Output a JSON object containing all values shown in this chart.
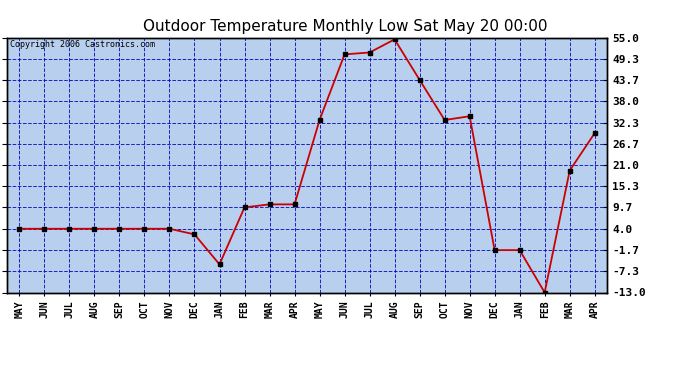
{
  "title": "Outdoor Temperature Monthly Low Sat May 20 00:00",
  "copyright": "Copyright 2006 Castronics.com",
  "x_labels": [
    "MAY",
    "JUN",
    "JUL",
    "AUG",
    "SEP",
    "OCT",
    "NOV",
    "DEC",
    "JAN",
    "FEB",
    "MAR",
    "APR",
    "MAY",
    "JUN",
    "JUL",
    "AUG",
    "SEP",
    "OCT",
    "NOV",
    "DEC",
    "JAN",
    "FEB",
    "MAR",
    "APR"
  ],
  "y_values": [
    4.0,
    4.0,
    4.0,
    4.0,
    4.0,
    4.0,
    4.0,
    2.5,
    -5.5,
    9.7,
    10.5,
    10.5,
    33.0,
    50.5,
    51.0,
    54.5,
    43.7,
    33.0,
    34.0,
    -1.7,
    -1.7,
    -13.0,
    19.5,
    29.5
  ],
  "y_ticks": [
    55.0,
    49.3,
    43.7,
    38.0,
    32.3,
    26.7,
    21.0,
    15.3,
    9.7,
    4.0,
    -1.7,
    -7.3,
    -13.0
  ],
  "y_min": -13.0,
  "y_max": 55.0,
  "line_color": "#cc0000",
  "marker_color": "#000000",
  "bg_color": "#b8d0ee",
  "grid_color": "#0000bb",
  "title_fontsize": 11,
  "copyright_fontsize": 6,
  "axis_label_fontsize": 7,
  "tick_fontsize": 8
}
